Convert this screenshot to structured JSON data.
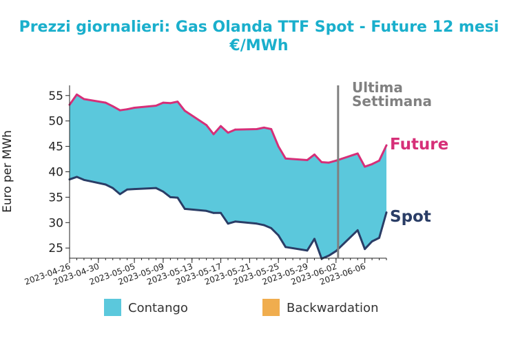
{
  "chart_data": {
    "type": "area",
    "title": "Prezzi giornalieri: Gas Olanda TTF Spot - Future 12 mesi",
    "subtitle": "€/MWh",
    "xlabel": "",
    "ylabel": "Euro per MWh",
    "ylim": [
      23,
      57
    ],
    "xlim": [
      "2023-04-26",
      "2023-06-09"
    ],
    "yticks": [
      25,
      30,
      35,
      40,
      45,
      50,
      55
    ],
    "xticks": [
      "2023-04-26",
      "2023-04-30",
      "2023-05-05",
      "2023-05-09",
      "2023-05-13",
      "2023-05-17",
      "2023-05-21",
      "2023-05-25",
      "2023-05-29",
      "2023-06-02",
      "2023-06-06"
    ],
    "grid": false,
    "x": [
      "2023-04-26",
      "2023-04-27",
      "2023-04-28",
      "2023-05-01",
      "2023-05-02",
      "2023-05-03",
      "2023-05-04",
      "2023-05-05",
      "2023-05-08",
      "2023-05-09",
      "2023-05-10",
      "2023-05-11",
      "2023-05-12",
      "2023-05-15",
      "2023-05-16",
      "2023-05-17",
      "2023-05-18",
      "2023-05-19",
      "2023-05-22",
      "2023-05-23",
      "2023-05-24",
      "2023-05-25",
      "2023-05-26",
      "2023-05-29",
      "2023-05-30",
      "2023-05-31",
      "2023-06-01",
      "2023-06-02",
      "2023-06-05",
      "2023-06-06",
      "2023-06-07",
      "2023-06-08",
      "2023-06-09"
    ],
    "series": [
      {
        "name": "Future",
        "color": "#d62f78",
        "values": [
          53.2,
          55.2,
          54.3,
          53.6,
          52.9,
          52.1,
          52.3,
          52.6,
          53.0,
          53.6,
          53.5,
          53.8,
          52.0,
          49.2,
          47.4,
          49.0,
          47.7,
          48.3,
          48.4,
          48.7,
          48.4,
          45.0,
          42.6,
          42.3,
          43.4,
          41.9,
          41.8,
          42.2,
          43.6,
          41.0,
          41.5,
          42.2,
          45.2
        ]
      },
      {
        "name": "Spot",
        "color": "#2a3d66",
        "values": [
          38.5,
          39.0,
          38.4,
          37.5,
          36.8,
          35.6,
          36.5,
          36.6,
          36.8,
          36.1,
          35.0,
          34.9,
          32.7,
          32.3,
          31.9,
          31.9,
          29.8,
          30.2,
          29.8,
          29.5,
          28.9,
          27.5,
          25.2,
          24.5,
          26.8,
          22.9,
          23.5,
          24.4,
          28.5,
          24.8,
          26.3,
          27.0,
          32.0
        ]
      }
    ],
    "annotations": [
      {
        "text": "Ultima",
        "color": "#808080"
      },
      {
        "text": "Settimana",
        "color": "#808080"
      }
    ],
    "marker_line_date": "2023-06-02",
    "series_labels": [
      {
        "text": "Future",
        "color": "#d62f78"
      },
      {
        "text": "Spot",
        "color": "#2a3d66"
      }
    ],
    "legend": {
      "placement": "bottom",
      "items": [
        {
          "label": "Contango",
          "color": "#5bc8dc"
        },
        {
          "label": "Backwardation",
          "color": "#f0ad4e"
        }
      ]
    },
    "colors": {
      "title": "#1aafcc",
      "contango_fill": "#5bc8dc",
      "backwardation_fill": "#f0ad4e",
      "marker_line": "#808080"
    }
  }
}
